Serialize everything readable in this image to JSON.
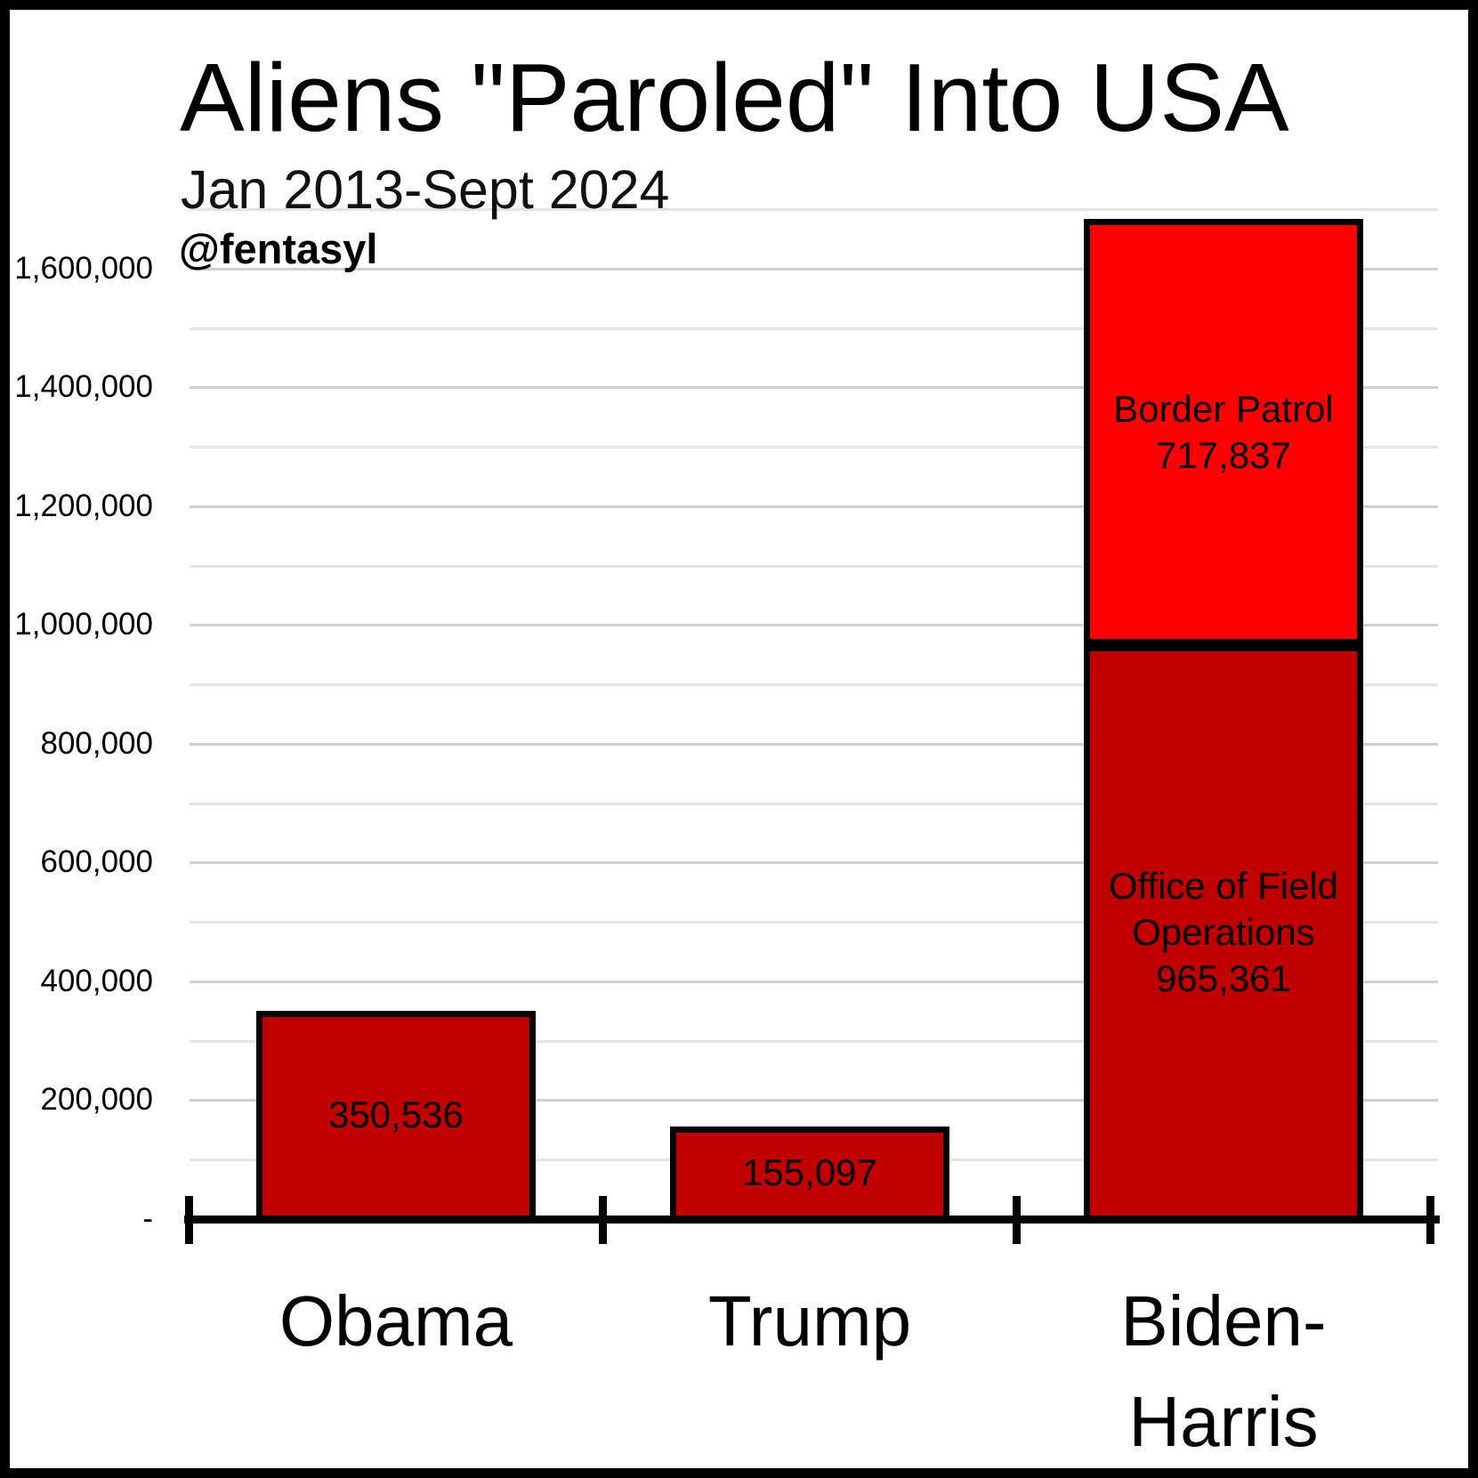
{
  "page": {
    "background": "#FFFFFF",
    "frame_color": "#000000"
  },
  "header": {
    "title": "Aliens \"Paroled\" Into USA",
    "subtitle": "Jan 2013-Sept 2024",
    "attribution": "@fentasyl"
  },
  "chart_data": {
    "type": "bar",
    "stacked": true,
    "title": "Aliens \"Paroled\" Into USA",
    "subtitle": "Jan 2013-Sept 2024",
    "attribution": "@fentasyl",
    "grid": "horizontal-light-gray",
    "legend": "none",
    "categories": [
      "Obama",
      "Trump",
      "Biden-Harris"
    ],
    "category_display_lines": [
      [
        "Obama"
      ],
      [
        "Trump"
      ],
      [
        "Biden-",
        "Harris"
      ]
    ],
    "series": [
      {
        "name": "Office of Field Operations",
        "color": "#C00000",
        "values": [
          350536,
          155097,
          965361
        ]
      },
      {
        "name": "Border Patrol",
        "color": "#FF0000",
        "values": [
          0,
          0,
          717837
        ]
      }
    ],
    "bars": [
      {
        "category": "Obama",
        "segments": [
          {
            "series": "Office of Field Operations",
            "value": 350536,
            "color": "#C00000",
            "label_lines": [
              "350,536"
            ]
          }
        ]
      },
      {
        "category": "Trump",
        "segments": [
          {
            "series": "Office of Field Operations",
            "value": 155097,
            "color": "#C00000",
            "label_lines": [
              "155,097"
            ]
          }
        ]
      },
      {
        "category": "Biden-Harris",
        "segments": [
          {
            "series": "Office of Field Operations",
            "value": 965361,
            "color": "#C00000",
            "label_lines": [
              "Office of Field",
              "Operations",
              "965,361"
            ]
          },
          {
            "series": "Border Patrol",
            "value": 717837,
            "color": "#FF0000",
            "label_lines": [
              "Border Patrol",
              "717,837"
            ]
          }
        ]
      }
    ],
    "y_axis": {
      "min": 0,
      "max": 1700000,
      "minor_step": 100000,
      "major_step": 200000,
      "zero_label": "-",
      "tick_labels": [
        {
          "value": 1600000,
          "label": "1,600,000"
        },
        {
          "value": 1400000,
          "label": "1,400,000"
        },
        {
          "value": 1200000,
          "label": "1,200,000"
        },
        {
          "value": 1000000,
          "label": "1,000,000"
        },
        {
          "value": 800000,
          "label": "800,000"
        },
        {
          "value": 600000,
          "label": "600,000"
        },
        {
          "value": 400000,
          "label": "400,000"
        },
        {
          "value": 200000,
          "label": "200,000"
        },
        {
          "value": 0,
          "label": "-"
        }
      ]
    },
    "colors": {
      "dark_red": "#C00000",
      "bright_red": "#FF0000",
      "gridline_major": "#D0D0D0",
      "gridline_minor": "#E4E4E4",
      "axis": "#000000",
      "text": "#000000",
      "background": "#FFFFFF"
    }
  }
}
